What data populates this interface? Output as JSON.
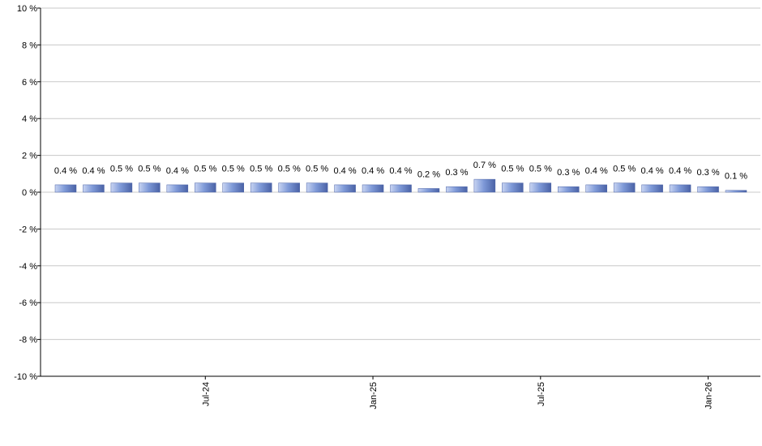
{
  "chart_data": {
    "type": "bar",
    "title": "",
    "xlabel": "",
    "ylabel": "",
    "ylim": [
      -10,
      10
    ],
    "y_ticks": [
      10,
      8,
      6,
      4,
      2,
      0,
      -2,
      -4,
      -6,
      -8,
      -10
    ],
    "y_tick_labels": [
      "10 %",
      "8 %",
      "6 %",
      "4 %",
      "2 %",
      "0 %",
      "-2 %",
      "-4 %",
      "-6 %",
      "-8 %",
      "-10 %"
    ],
    "grid": true,
    "x_tick_labels": [
      {
        "label": "Jul-24",
        "category_index": 5
      },
      {
        "label": "Jan-25",
        "category_index": 11
      },
      {
        "label": "Jul-25",
        "category_index": 17
      },
      {
        "label": "Jan-26",
        "category_index": 23
      }
    ],
    "values": [
      0.4,
      0.4,
      0.5,
      0.5,
      0.4,
      0.5,
      0.5,
      0.5,
      0.5,
      0.5,
      0.4,
      0.4,
      0.4,
      0.2,
      0.3,
      0.7,
      0.5,
      0.5,
      0.3,
      0.4,
      0.5,
      0.4,
      0.4,
      0.3,
      0.1
    ],
    "data_labels": [
      "0.4 %",
      "0.4 %",
      "0.5 %",
      "0.5 %",
      "0.4 %",
      "0.5 %",
      "0.5 %",
      "0.5 %",
      "0.5 %",
      "0.5 %",
      "0.4 %",
      "0.4 %",
      "0.4 %",
      "0.2 %",
      "0.3 %",
      "0.7 %",
      "0.5 %",
      "0.5 %",
      "0.3 %",
      "0.4 %",
      "0.5 %",
      "0.4 %",
      "0.4 %",
      "0.3 %",
      "0.1 %"
    ],
    "colors": {
      "bar_light": "#c8d4f2",
      "bar_mid": "#7f9ad8",
      "bar_dark": "#4a62a6",
      "grid": "#c8c8c8",
      "axis": "#000000"
    }
  }
}
